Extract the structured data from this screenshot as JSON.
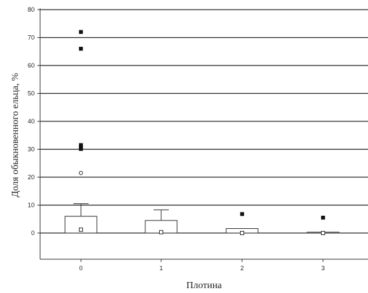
{
  "chart_data": {
    "type": "boxplot",
    "xlabel": "Плотина",
    "ylabel": "Доля обыкновенного ельца, %",
    "categories": [
      "0",
      "1",
      "2",
      "3"
    ],
    "ylim": [
      -8,
      80
    ],
    "yticks": [
      0,
      10,
      20,
      30,
      40,
      50,
      60,
      70,
      80
    ],
    "grid": "horizontal",
    "series": [
      {
        "category": "0",
        "box_top": 6,
        "whisker_top": 10.5,
        "median": 1.2,
        "outliers": [
          21.5
        ],
        "extremes": [
          72,
          66,
          31.5,
          30.8,
          30.1
        ]
      },
      {
        "category": "1",
        "box_top": 4.5,
        "whisker_top": 8.3,
        "median": 0.3,
        "outliers": [],
        "extremes": []
      },
      {
        "category": "2",
        "box_top": 1.6,
        "whisker_top": 1.6,
        "median": 0,
        "outliers": [],
        "extremes": [
          6.8
        ]
      },
      {
        "category": "3",
        "box_top": 0.3,
        "whisker_top": 0.3,
        "median": 0,
        "outliers": [],
        "extremes": [
          5.5
        ]
      }
    ]
  }
}
